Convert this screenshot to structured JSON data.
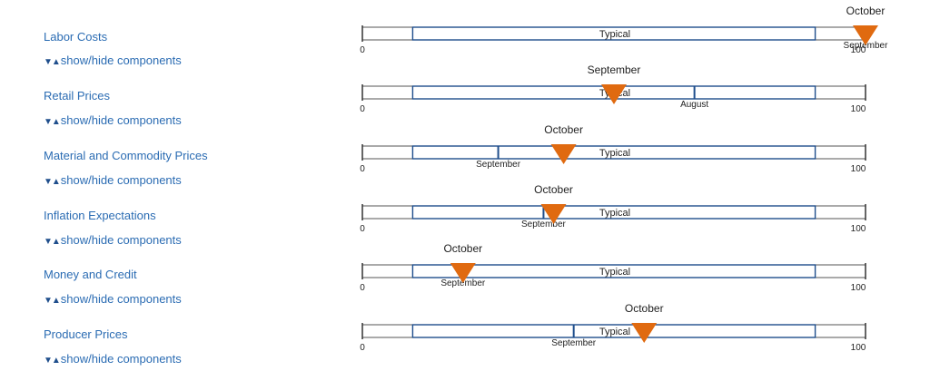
{
  "toggle_label": "show/hide components",
  "toggle_icon": "▼▲",
  "colors": {
    "marker": "#e06a10",
    "bar_border": "#1f4e8c",
    "label": "#2b6cb3"
  },
  "chart_data": {
    "type": "gauge-bars",
    "xlim": [
      0,
      100
    ],
    "tick_labels": [
      "0",
      "100"
    ],
    "typical_range": [
      10,
      90
    ],
    "typical_label": "Typical",
    "rows": [
      {
        "name": "Labor Costs",
        "current": {
          "label": "October",
          "value": 100
        },
        "previous": {
          "label": "September",
          "value": 100
        }
      },
      {
        "name": "Retail Prices",
        "current": {
          "label": "September",
          "value": 50
        },
        "previous": {
          "label": "August",
          "value": 66
        }
      },
      {
        "name": "Material and Commodity Prices",
        "current": {
          "label": "October",
          "value": 40
        },
        "previous": {
          "label": "September",
          "value": 27
        }
      },
      {
        "name": "Inflation Expectations",
        "current": {
          "label": "October",
          "value": 38
        },
        "previous": {
          "label": "September",
          "value": 36
        }
      },
      {
        "name": "Money and Credit",
        "current": {
          "label": "October",
          "value": 20
        },
        "previous": {
          "label": "September",
          "value": 20
        }
      },
      {
        "name": "Producer Prices",
        "current": {
          "label": "October",
          "value": 56
        },
        "previous": {
          "label": "September",
          "value": 42
        }
      }
    ]
  }
}
